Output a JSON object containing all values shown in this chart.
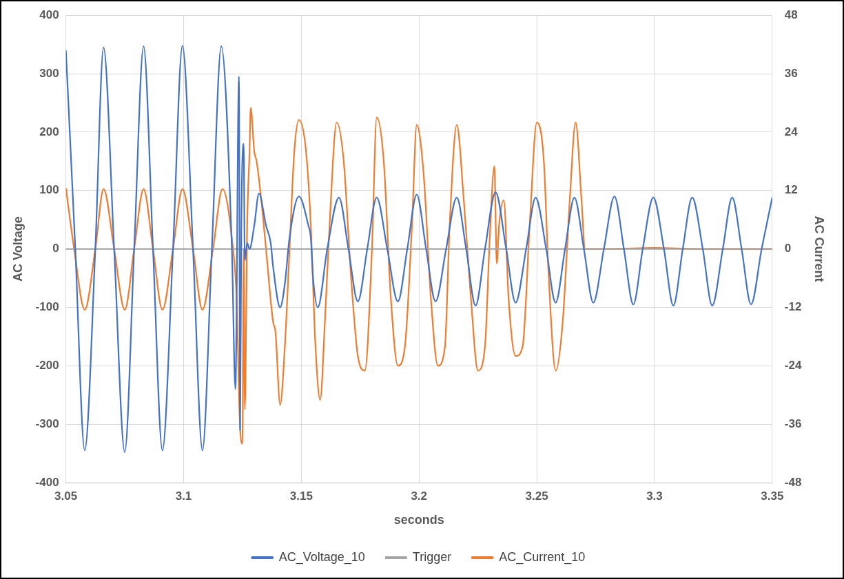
{
  "chart_data": {
    "type": "line",
    "xlabel": "seconds",
    "ylabel": "AC Voltage",
    "y2label": "AC Current",
    "xlim": [
      3.05,
      3.35
    ],
    "xticks": [
      3.05,
      3.1,
      3.15,
      3.2,
      3.25,
      3.3,
      3.35
    ],
    "ylim": [
      -400,
      400
    ],
    "yticks": [
      -400,
      -300,
      -200,
      -100,
      0,
      100,
      200,
      300,
      400
    ],
    "y2lim": [
      -48,
      48
    ],
    "y2ticks": [
      -48,
      -36,
      -24,
      -12,
      0,
      12,
      24,
      36,
      48
    ],
    "grid": true,
    "legend": "bottom",
    "marker": "none",
    "line_style": "solid",
    "series": [
      {
        "name": "AC_Voltage_10",
        "color": "#4472c4",
        "axis": "y",
        "x": [
          3.05,
          3.054,
          3.058,
          3.0625,
          3.066,
          3.0705,
          3.075,
          3.079,
          3.083,
          3.087,
          3.091,
          3.0955,
          3.0995,
          3.104,
          3.108,
          3.112,
          3.116,
          3.1205,
          3.122,
          3.1235,
          3.124,
          3.1245,
          3.1255,
          3.126,
          3.127,
          3.128,
          3.13,
          3.132,
          3.135,
          3.137,
          3.138,
          3.141,
          3.143,
          3.145,
          3.149,
          3.153,
          3.154,
          3.155,
          3.157,
          3.161,
          3.166,
          3.17,
          3.174,
          3.178,
          3.182,
          3.1865,
          3.191,
          3.195,
          3.199,
          3.203,
          3.207,
          3.2115,
          3.216,
          3.22,
          3.224,
          3.228,
          3.2325,
          3.237,
          3.241,
          3.2455,
          3.2495,
          3.254,
          3.258,
          3.262,
          3.266,
          3.27,
          3.274,
          3.2785,
          3.283,
          3.287,
          3.291,
          3.295,
          3.2995,
          3.304,
          3.308,
          3.312,
          3.316,
          3.3205,
          3.3245,
          3.329,
          3.333,
          3.337,
          3.341,
          3.3455,
          3.35
        ],
        "values": [
          340,
          0,
          -345,
          0,
          345,
          0,
          -348,
          0,
          347,
          0,
          -345,
          0,
          348,
          0,
          -345,
          0,
          347,
          0,
          -240,
          295,
          -310,
          30,
          180,
          -20,
          10,
          0,
          40,
          95,
          40,
          10,
          -30,
          -100,
          -60,
          20,
          90,
          40,
          20,
          -50,
          -100,
          0,
          88,
          0,
          -90,
          0,
          88,
          0,
          -90,
          0,
          93,
          0,
          -90,
          0,
          88,
          0,
          -97,
          0,
          97,
          0,
          -92,
          0,
          88,
          0,
          -92,
          0,
          88,
          0,
          -92,
          0,
          90,
          0,
          -95,
          0,
          88,
          0,
          -97,
          0,
          88,
          0,
          -97,
          0,
          88,
          0,
          -95,
          0,
          88
        ]
      },
      {
        "name": "Trigger",
        "color": "#a5a5a5",
        "axis": "y",
        "x": [
          3.05,
          3.35
        ],
        "values": [
          0,
          0
        ]
      },
      {
        "name": "AC_Current_10",
        "color": "#ed7d31",
        "axis": "y2",
        "x": [
          3.05,
          3.0535,
          3.058,
          3.0625,
          3.066,
          3.0705,
          3.075,
          3.079,
          3.083,
          3.087,
          3.091,
          3.0955,
          3.0995,
          3.104,
          3.108,
          3.1125,
          3.1165,
          3.121,
          3.1225,
          3.124,
          3.125,
          3.1255,
          3.126,
          3.127,
          3.128,
          3.1285,
          3.13,
          3.131,
          3.133,
          3.135,
          3.138,
          3.139,
          3.141,
          3.143,
          3.145,
          3.147,
          3.149,
          3.152,
          3.154,
          3.156,
          3.158,
          3.16,
          3.162,
          3.165,
          3.168,
          3.171,
          3.174,
          3.177,
          3.18,
          3.182,
          3.185,
          3.188,
          3.191,
          3.194,
          3.197,
          3.199,
          3.202,
          3.205,
          3.208,
          3.211,
          3.213,
          3.216,
          3.219,
          3.222,
          3.225,
          3.228,
          3.23,
          3.232,
          3.233,
          3.234,
          3.236,
          3.238,
          3.241,
          3.244,
          3.247,
          3.25,
          3.253,
          3.255,
          3.258,
          3.261,
          3.264,
          3.2665,
          3.269,
          3.2705,
          3.28,
          3.3,
          3.32,
          3.35
        ],
        "values": [
          12.5,
          0,
          -12.5,
          0,
          12.3,
          0,
          -12.5,
          0,
          12.3,
          0,
          -12.5,
          0,
          12.3,
          0,
          -12.5,
          0,
          12.3,
          0,
          -10,
          -37,
          -40,
          0,
          -33,
          5,
          20,
          29,
          20,
          18,
          10,
          0,
          -15,
          -17,
          -32,
          -20,
          0,
          20,
          26.5,
          20,
          5,
          -20,
          -31,
          -15,
          5,
          26,
          18,
          -5,
          -22,
          -25,
          0,
          27,
          18,
          -10,
          -24,
          -20,
          5,
          25.5,
          15,
          -10,
          -24,
          -20,
          5,
          25.5,
          10,
          -10,
          -25,
          -20,
          2,
          17,
          -3,
          5,
          10,
          -10,
          -22,
          -20,
          5,
          26,
          18,
          -5,
          -25,
          -15,
          10,
          26,
          10,
          0,
          0,
          0.2,
          0,
          0
        ]
      }
    ]
  }
}
